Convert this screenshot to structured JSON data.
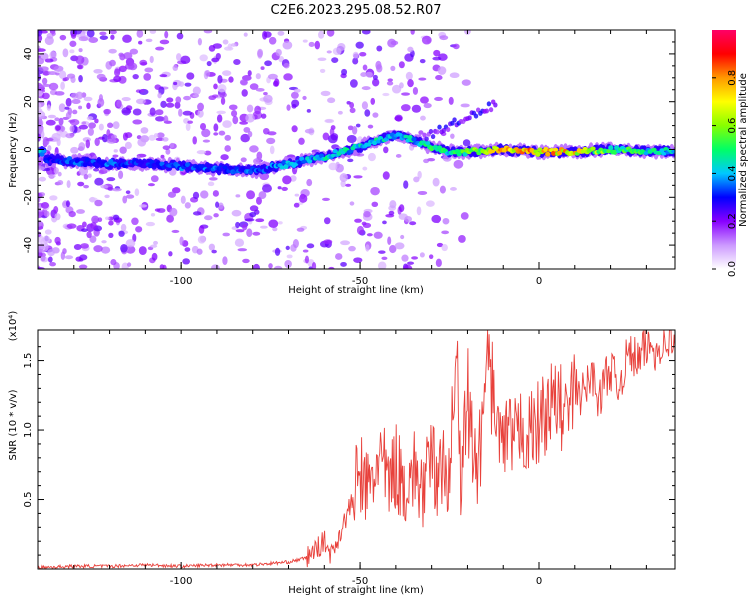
{
  "figure_title": "C2E6.2023.295.08.52.R07",
  "chart_data": [
    {
      "type": "heatmap",
      "xlabel": "Height of straight line (km)",
      "ylabel": "Frequency (Hz)",
      "xlim": [
        -140,
        38
      ],
      "ylim": [
        -50,
        50
      ],
      "xticks": [
        -100,
        -50,
        0
      ],
      "yticks": [
        -40,
        -20,
        0,
        20,
        40
      ],
      "colorbar": {
        "label": "Normalized spectral amplitude",
        "range": [
          0,
          1
        ],
        "ticks": [
          "0.0",
          "0.2",
          "0.4",
          "0.6",
          "0.8"
        ],
        "colors": [
          "#ffffff",
          "#cc99ff",
          "#8800ff",
          "#0000ff",
          "#00c8ff",
          "#00ff66",
          "#88ff00",
          "#ffff00",
          "#ff9900",
          "#ff0000",
          "#ff0066"
        ]
      },
      "ridge": {
        "x": [
          -138,
          -130,
          -120,
          -110,
          -100,
          -90,
          -80,
          -70,
          -60,
          -50,
          -45,
          -40,
          -35,
          -30,
          -25,
          -20,
          -10,
          0,
          10,
          20,
          38
        ],
        "freq": [
          -4,
          -5,
          -6,
          -6,
          -7,
          -8,
          -9,
          -6,
          -3,
          1,
          4,
          6,
          4,
          1,
          -1,
          -1,
          0,
          -1,
          -1,
          0,
          -1
        ],
        "amplitude": [
          0.3,
          0.35,
          0.35,
          0.3,
          0.35,
          0.35,
          0.35,
          0.4,
          0.45,
          0.45,
          0.45,
          0.45,
          0.45,
          0.5,
          0.5,
          0.55,
          0.8,
          0.8,
          0.75,
          0.55,
          0.45
        ]
      }
    },
    {
      "type": "line",
      "xlabel": "Height of straight line (km)",
      "ylabel": "SNR (10 * v/v)",
      "y_multiplier": "(x10⁴)",
      "xlim": [
        -140,
        38
      ],
      "ylim": [
        0,
        1.72
      ],
      "xticks": [
        -100,
        -50,
        0
      ],
      "yticks": [
        0.5,
        1.0,
        1.5
      ],
      "ytick_labels": [
        "0.5",
        "1.0",
        "1.5"
      ],
      "color": "#e8413b",
      "x": [
        -140,
        -130,
        -120,
        -110,
        -100,
        -90,
        -80,
        -70,
        -65,
        -62,
        -60,
        -58,
        -55,
        -52,
        -50,
        -48,
        -46,
        -45,
        -42,
        -40,
        -38,
        -35,
        -32,
        -30,
        -28,
        -25,
        -23,
        -22,
        -20,
        -18,
        -16,
        -14,
        -13,
        -12,
        -10,
        -8,
        -6,
        -5,
        -3,
        0,
        2,
        5,
        8,
        10,
        12,
        15,
        17,
        18,
        20,
        22,
        25,
        28,
        30,
        33,
        35,
        38
      ],
      "y": [
        0.01,
        0.02,
        0.02,
        0.03,
        0.02,
        0.03,
        0.03,
        0.05,
        0.08,
        0.15,
        0.2,
        0.1,
        0.3,
        0.5,
        0.7,
        0.55,
        0.65,
        0.85,
        0.6,
        0.75,
        0.6,
        0.7,
        0.55,
        0.8,
        0.65,
        0.75,
        1.6,
        0.6,
        1.2,
        0.7,
        0.9,
        1.65,
        0.8,
        1.0,
        0.85,
        0.95,
        0.9,
        1.05,
        0.95,
        1.05,
        1.15,
        1.2,
        1.1,
        1.3,
        1.25,
        1.4,
        1.2,
        1.35,
        1.45,
        1.3,
        1.55,
        1.5,
        1.6,
        1.58,
        1.65,
        1.62
      ]
    }
  ]
}
